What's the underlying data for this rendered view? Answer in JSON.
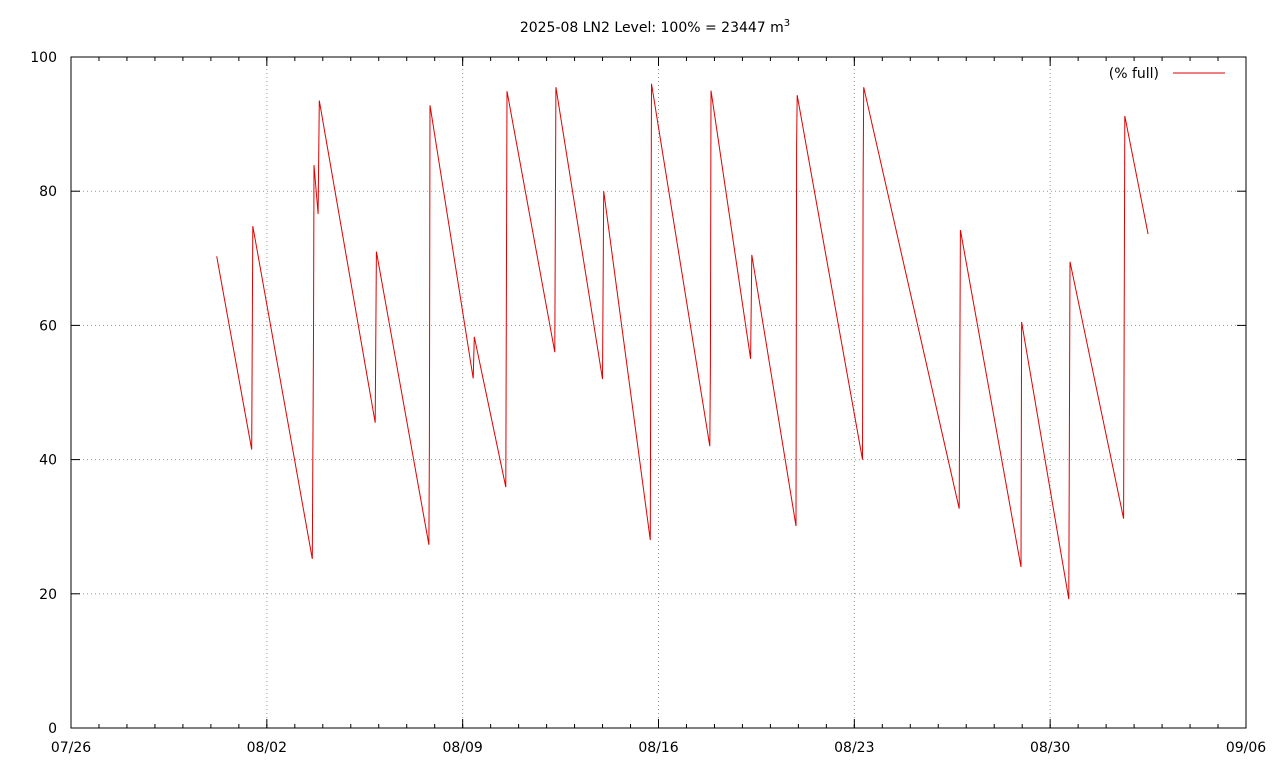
{
  "chart_data": {
    "type": "line",
    "title": "2025-08 LN2 Level: 100% = 23447 m",
    "title_superscript": "3",
    "xlabel": "",
    "ylabel": "",
    "x_axis_type": "date",
    "xlim": [
      "2025-07-26",
      "2025-09-06"
    ],
    "ylim": [
      0,
      100
    ],
    "x_ticks": [
      {
        "date": "2025-07-26",
        "label": "07/26"
      },
      {
        "date": "2025-08-02",
        "label": "08/02"
      },
      {
        "date": "2025-08-09",
        "label": "08/09"
      },
      {
        "date": "2025-08-16",
        "label": "08/16"
      },
      {
        "date": "2025-08-23",
        "label": "08/23"
      },
      {
        "date": "2025-08-30",
        "label": "08/30"
      },
      {
        "date": "2025-09-06",
        "label": "09/06"
      }
    ],
    "y_ticks": [
      0,
      20,
      40,
      60,
      80,
      100
    ],
    "grid": true,
    "legend": "top-right",
    "colors": {
      "series": "#e00000",
      "grid": "#9a9a9a",
      "axis": "#000000"
    },
    "series": [
      {
        "name": "(% full)",
        "points": [
          [
            "2025-07-31T05:00",
            70.3
          ],
          [
            "2025-08-01T11:00",
            41.5
          ],
          [
            "2025-08-01T12:00",
            74.8
          ],
          [
            "2025-08-03T15:00",
            25.2
          ],
          [
            "2025-08-03T16:00",
            58.5
          ],
          [
            "2025-08-03T16:30",
            83.9
          ],
          [
            "2025-08-03T20:00",
            76.6
          ],
          [
            "2025-08-03T21:00",
            93.5
          ],
          [
            "2025-08-05T21:00",
            45.5
          ],
          [
            "2025-08-05T22:00",
            71.0
          ],
          [
            "2025-08-07T19:00",
            27.3
          ],
          [
            "2025-08-07T19:30",
            42.5
          ],
          [
            "2025-08-07T20:00",
            92.8
          ],
          [
            "2025-08-09T09:00",
            52.1
          ],
          [
            "2025-08-09T10:00",
            58.3
          ],
          [
            "2025-08-10T13:00",
            35.9
          ],
          [
            "2025-08-10T14:00",
            94.9
          ],
          [
            "2025-08-12T07:00",
            56.0
          ],
          [
            "2025-08-12T08:00",
            95.5
          ],
          [
            "2025-08-14T00:00",
            52.0
          ],
          [
            "2025-08-14T01:00",
            80.0
          ],
          [
            "2025-08-15T17:00",
            28.0
          ],
          [
            "2025-08-15T17:30",
            67.5
          ],
          [
            "2025-08-15T18:00",
            96.0
          ],
          [
            "2025-08-17T20:00",
            42.0
          ],
          [
            "2025-08-17T20:30",
            53.5
          ],
          [
            "2025-08-17T21:00",
            95.0
          ],
          [
            "2025-08-19T07:00",
            55.0
          ],
          [
            "2025-08-19T08:00",
            70.5
          ],
          [
            "2025-08-20T22:00",
            30.1
          ],
          [
            "2025-08-20T22:30",
            87.0
          ],
          [
            "2025-08-20T23:00",
            94.3
          ],
          [
            "2025-08-23T07:00",
            40.0
          ],
          [
            "2025-08-23T07:30",
            81.0
          ],
          [
            "2025-08-23T08:00",
            95.5
          ],
          [
            "2025-08-26T18:00",
            32.7
          ],
          [
            "2025-08-26T19:00",
            74.2
          ],
          [
            "2025-08-28T23:00",
            24.0
          ],
          [
            "2025-08-28T23:30",
            60.5
          ],
          [
            "2025-08-30T16:00",
            19.2
          ],
          [
            "2025-08-30T17:00",
            69.5
          ],
          [
            "2025-09-01T15:00",
            31.2
          ],
          [
            "2025-09-01T16:00",
            91.2
          ],
          [
            "2025-09-02T12:00",
            73.6
          ]
        ]
      }
    ]
  }
}
